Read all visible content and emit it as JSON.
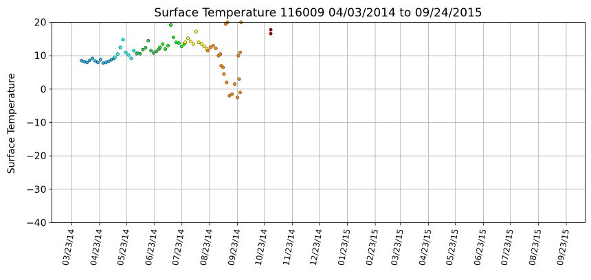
{
  "chart_data": {
    "type": "scatter",
    "title": "Surface Temperature 116009  04/03/2014 to 09/24/2015",
    "xlabel": "",
    "ylabel": "Surface Temperature",
    "ylim": [
      -40,
      20
    ],
    "y_ticks": [
      20,
      10,
      0,
      -10,
      -20,
      -30,
      -40
    ],
    "y_tick_labels": [
      "20",
      "10",
      "0",
      "−10",
      "−20",
      "−30",
      "−40"
    ],
    "xlim": [
      "2014-03-01",
      "2015-10-14"
    ],
    "x_ticks": [
      "2014-03-23",
      "2014-04-23",
      "2014-05-23",
      "2014-06-23",
      "2014-07-23",
      "2014-08-23",
      "2014-09-23",
      "2014-10-23",
      "2014-11-23",
      "2014-12-23",
      "2015-01-23",
      "2015-02-23",
      "2015-03-23",
      "2015-04-23",
      "2015-05-23",
      "2015-06-23",
      "2015-07-23",
      "2015-08-23",
      "2015-09-23"
    ],
    "x_tick_labels": [
      "03/23/14",
      "04/23/14",
      "05/23/14",
      "06/23/14",
      "07/23/14",
      "08/23/14",
      "09/23/14",
      "10/23/14",
      "11/23/14",
      "12/23/14",
      "01/23/15",
      "02/23/15",
      "03/23/15",
      "04/23/15",
      "05/23/15",
      "06/23/15",
      "07/23/15",
      "08/23/15",
      "09/23/15"
    ],
    "grid": true,
    "series": [
      {
        "color": "#1ab2f0",
        "x": [
          "2014-04-03",
          "2014-04-06",
          "2014-04-09",
          "2014-04-12",
          "2014-04-15",
          "2014-04-18",
          "2014-04-21",
          "2014-04-24",
          "2014-04-27",
          "2014-04-30",
          "2014-05-03",
          "2014-05-06",
          "2014-05-09"
        ],
        "y": [
          8.5,
          8.2,
          8.0,
          8.6,
          9.2,
          8.4,
          8.0,
          8.8,
          7.8,
          8.0,
          8.3,
          8.8,
          9.2
        ]
      },
      {
        "color": "#00ffff",
        "x": [
          "2014-05-10",
          "2014-05-13",
          "2014-05-16",
          "2014-05-19",
          "2014-05-22",
          "2014-05-25",
          "2014-05-28",
          "2014-05-31",
          "2014-06-03"
        ],
        "y": [
          9.5,
          10.5,
          12.5,
          14.8,
          11.0,
          10.2,
          9.2,
          11.5,
          10.6
        ]
      },
      {
        "color": "#2ecc40",
        "x": [
          "2014-06-04",
          "2014-06-07",
          "2014-06-10",
          "2014-06-13",
          "2014-06-16",
          "2014-06-19",
          "2014-06-22",
          "2014-06-25",
          "2014-06-28"
        ],
        "y": [
          10.8,
          10.6,
          11.8,
          12.4,
          14.5,
          11.5,
          10.8,
          11.3,
          12.0
        ]
      },
      {
        "color": "#00ff00",
        "x": [
          "2014-06-29",
          "2014-07-02",
          "2014-07-05",
          "2014-07-08",
          "2014-07-11",
          "2014-07-14",
          "2014-07-17",
          "2014-07-20",
          "2014-07-23",
          "2014-07-26"
        ],
        "y": [
          12.5,
          13.5,
          12.0,
          13.0,
          19.2,
          15.5,
          14.0,
          13.8,
          12.8,
          13.5
        ]
      },
      {
        "color": "#ffff00",
        "x": [
          "2014-07-27",
          "2014-07-30",
          "2014-08-02",
          "2014-08-05",
          "2014-08-08",
          "2014-08-11",
          "2014-08-14",
          "2014-08-17",
          "2014-08-20"
        ],
        "y": [
          14.0,
          15.2,
          14.3,
          13.5,
          17.2,
          14.0,
          13.5,
          12.8,
          12.0
        ]
      },
      {
        "color": "#ff8c00",
        "x": [
          "2014-08-21",
          "2014-08-24",
          "2014-08-27",
          "2014-08-30",
          "2014-09-02",
          "2014-09-05",
          "2014-09-08",
          "2014-09-11",
          "2014-09-14",
          "2014-09-17",
          "2014-09-20",
          "2014-09-23",
          "2014-09-25",
          "2014-09-26",
          "2014-09-27",
          "2014-09-10",
          "2014-09-12",
          "2014-09-04",
          "2014-09-07",
          "2014-09-24",
          "2014-09-26"
        ],
        "y": [
          11.5,
          12.5,
          13.0,
          12.2,
          10.0,
          7.0,
          4.5,
          2.0,
          -2.0,
          -1.5,
          1.5,
          -2.5,
          3.0,
          -1.0,
          20.0,
          19.5,
          20.0,
          10.5,
          6.5,
          10.0,
          11.0
        ]
      },
      {
        "color": "#c00000",
        "x": [
          "2014-10-30",
          "2014-10-30"
        ],
        "y": [
          17.8,
          16.6
        ]
      }
    ]
  }
}
